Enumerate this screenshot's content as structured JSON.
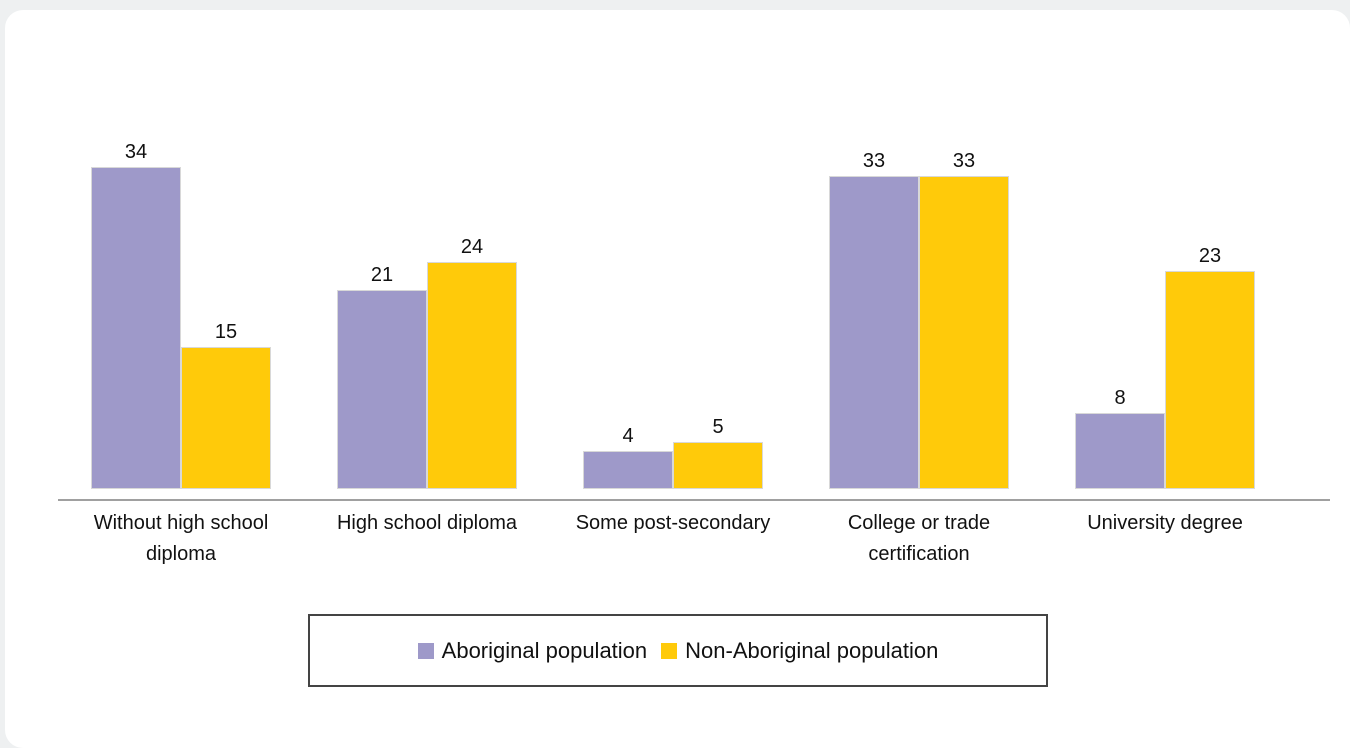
{
  "chart_data": {
    "type": "bar",
    "categories": [
      "Without high school diploma",
      "High school diploma",
      "Some post-secondary",
      "College or trade certification",
      "University degree"
    ],
    "series": [
      {
        "name": "Aboriginal population",
        "color": "#9e99c9",
        "values": [
          34,
          21,
          4,
          33,
          8
        ]
      },
      {
        "name": "Non-Aboriginal population",
        "color": "#ffca0a",
        "values": [
          15,
          24,
          5,
          33,
          23
        ]
      }
    ]
  }
}
